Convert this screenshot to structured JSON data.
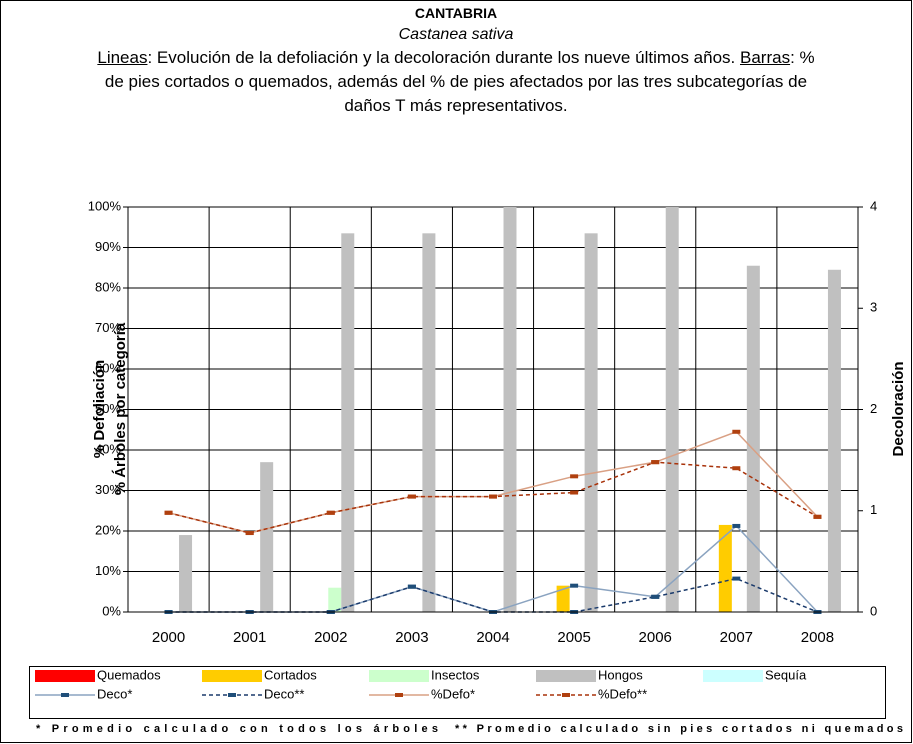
{
  "chart_data": {
    "type": "combo",
    "title": "CANTABRIA",
    "subtitle": "Castanea sativa",
    "description": [
      "Lineas",
      ": Evolución de la defoliación y la decoloración durante los nueve últimos años. ",
      "Barras",
      ": % de pies cortados o quemados, además del % de pies afectados por las tres subcategorías de daños T más representativos."
    ],
    "ylabel": [
      "% Defoliación",
      "% Árboles por categoría"
    ],
    "y2label": "Decoloración",
    "categories": [
      "2000",
      "2001",
      "2002",
      "2003",
      "2004",
      "2005",
      "2006",
      "2007",
      "2008"
    ],
    "ylim": [
      0,
      100
    ],
    "yticks": [
      {
        "value": 0,
        "label": "0%"
      },
      {
        "value": 10,
        "label": "10%"
      },
      {
        "value": 20,
        "label": "20%"
      },
      {
        "value": 30,
        "label": "30%"
      },
      {
        "value": 40,
        "label": "40%"
      },
      {
        "value": 50,
        "label": "50%"
      },
      {
        "value": 60,
        "label": "60%"
      },
      {
        "value": 70,
        "label": "70%"
      },
      {
        "value": 80,
        "label": "80%"
      },
      {
        "value": 90,
        "label": "90%"
      },
      {
        "value": 100,
        "label": "100%"
      }
    ],
    "y2lim": [
      0,
      4
    ],
    "y2ticks": [
      0,
      1,
      2,
      3,
      4
    ],
    "grid": true,
    "series": [
      {
        "name": "Quemados",
        "kind": "bar",
        "color": "#ff0000",
        "values": [
          0,
          0,
          0,
          0,
          0,
          0,
          0,
          0,
          0
        ]
      },
      {
        "name": "Cortados",
        "kind": "bar",
        "color": "#ffcc00",
        "values": [
          0,
          0,
          0,
          0,
          0,
          6.5,
          0,
          21.5,
          0
        ]
      },
      {
        "name": "Insectos",
        "kind": "bar",
        "color": "#ccffcc",
        "values": [
          0,
          0,
          6,
          0,
          0,
          0,
          0,
          0,
          0
        ]
      },
      {
        "name": "Hongos",
        "kind": "bar",
        "color": "#c0c0c0",
        "values": [
          19,
          37,
          93.5,
          93.5,
          100,
          93.5,
          100,
          85.5,
          84.5
        ]
      },
      {
        "name": "Sequía",
        "kind": "bar",
        "color": "#ccffff",
        "values": [
          0,
          0,
          0,
          0,
          0,
          0,
          0,
          0,
          0
        ]
      },
      {
        "name": "Deco*",
        "kind": "line",
        "axis": "y2",
        "color": "#8aa3c0",
        "marker_color": "#1f4e79",
        "dashed": false,
        "values": [
          0,
          0,
          0,
          0.25,
          0,
          0.26,
          0.15,
          0.85,
          0
        ]
      },
      {
        "name": "Deco**",
        "kind": "line",
        "axis": "y2",
        "color": "#1a3a6b",
        "marker_color": "#1f4e79",
        "dashed": true,
        "values": [
          0,
          0,
          0,
          0.25,
          0,
          0,
          0.15,
          0.33,
          0
        ]
      },
      {
        "name": "%Defo*",
        "kind": "line",
        "color": "#d9a084",
        "marker_color": "#b0400f",
        "dashed": false,
        "values": [
          24.5,
          19.5,
          24.5,
          28.5,
          28.5,
          33.5,
          37,
          44.5,
          23.5
        ]
      },
      {
        "name": "%Defo**",
        "kind": "line",
        "color": "#a8320a",
        "marker_color": "#b0400f",
        "dashed": true,
        "values": [
          24.5,
          19.5,
          24.5,
          28.5,
          28.5,
          29.5,
          37,
          35.5,
          23.5
        ]
      }
    ],
    "notes": [
      "* Promedio calculado con todos los árboles",
      "** Promedio calculado sin pies cortados ni quemados"
    ]
  }
}
